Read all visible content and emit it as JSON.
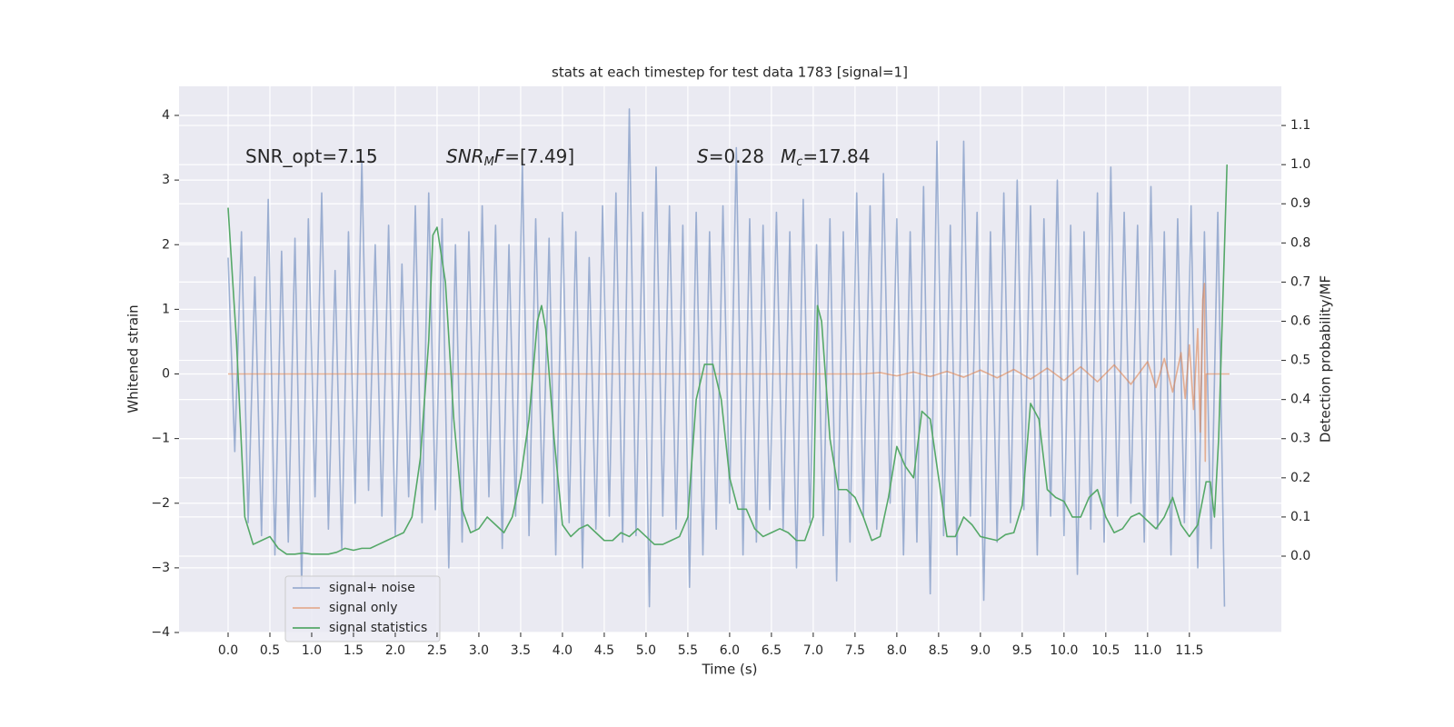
{
  "chart_data": {
    "type": "line",
    "title": "stats at each timestep for test data 1783 [signal=1]",
    "xlabel": "Time (s)",
    "ylabel": "Whitened strain",
    "y2label": "Detection probability/MF",
    "annotations": [
      [
        "SNR_opt=7.15"
      ],
      [
        "SNR",
        "M",
        "F",
        "=[7.49]"
      ],
      [
        "S",
        "=0.28",
        "M",
        "c",
        "=17.84"
      ]
    ],
    "xlim": [
      -0.587,
      12.6
    ],
    "ylim": [
      -4.0,
      4.45
    ],
    "y2lim": [
      -0.195,
      1.2
    ],
    "xticks": [
      {
        "value": 0,
        "label": "0.0"
      },
      0.5,
      {
        "value": 1,
        "label": "1.0"
      },
      1.5,
      {
        "value": 2,
        "label": "2.0"
      },
      2.5,
      {
        "value": 3,
        "label": "3.0"
      },
      3.5,
      {
        "value": 4,
        "label": "4.0"
      },
      4.5,
      {
        "value": 5,
        "label": "5.0"
      },
      5.5,
      {
        "value": 6,
        "label": "6.0"
      },
      6.5,
      {
        "value": 7,
        "label": "7.0"
      },
      7.5,
      {
        "value": 8,
        "label": "8.0"
      },
      8.5,
      {
        "value": 9,
        "label": "9.0"
      },
      9.5,
      {
        "value": 10,
        "label": "10.0"
      },
      10.5,
      {
        "value": 11,
        "label": "11.0"
      },
      11.5
    ],
    "yticks": [
      {
        "value": -4,
        "label": "−4"
      },
      {
        "value": -3,
        "label": "−3"
      },
      {
        "value": -2,
        "label": "−2"
      },
      {
        "value": -1,
        "label": "−1"
      },
      0,
      1,
      2,
      3,
      4
    ],
    "y2ticks": [
      {
        "value": 0,
        "label": "0.0"
      },
      0.1,
      0.2,
      0.3,
      0.4,
      0.5,
      0.6,
      0.7,
      0.8,
      0.9,
      {
        "value": 1,
        "label": "1.0"
      },
      1.1
    ],
    "grid": true,
    "legend": "lower left",
    "series": [
      {
        "name": "signal+ noise",
        "color": "#4c72b0",
        "opacity": 0.5,
        "x": [
          0,
          0.08,
          0.16,
          0.24,
          0.32,
          0.4,
          0.48,
          0.56,
          0.64,
          0.72,
          0.8,
          0.88,
          0.96,
          1.04,
          1.12,
          1.2,
          1.28,
          1.36,
          1.44,
          1.52,
          1.6,
          1.68,
          1.76,
          1.84,
          1.92,
          2,
          2.08,
          2.16,
          2.24,
          2.32,
          2.4,
          2.48,
          2.56,
          2.64,
          2.72,
          2.8,
          2.88,
          2.96,
          3.04,
          3.12,
          3.2,
          3.28,
          3.36,
          3.44,
          3.52,
          3.6,
          3.68,
          3.76,
          3.84,
          3.92,
          4,
          4.08,
          4.16,
          4.24,
          4.32,
          4.4,
          4.48,
          4.56,
          4.64,
          4.72,
          4.8,
          4.88,
          4.96,
          5.04,
          5.12,
          5.2,
          5.28,
          5.36,
          5.44,
          5.52,
          5.6,
          5.68,
          5.76,
          5.84,
          5.92,
          6,
          6.08,
          6.16,
          6.24,
          6.32,
          6.4,
          6.48,
          6.56,
          6.64,
          6.72,
          6.8,
          6.88,
          6.96,
          7.04,
          7.12,
          7.2,
          7.28,
          7.36,
          7.44,
          7.52,
          7.6,
          7.68,
          7.76,
          7.84,
          7.92,
          8,
          8.08,
          8.16,
          8.24,
          8.32,
          8.4,
          8.48,
          8.56,
          8.64,
          8.72,
          8.8,
          8.88,
          8.96,
          9.04,
          9.12,
          9.2,
          9.28,
          9.36,
          9.44,
          9.52,
          9.6,
          9.68,
          9.76,
          9.84,
          9.92,
          10,
          10.08,
          10.16,
          10.24,
          10.32,
          10.4,
          10.48,
          10.56,
          10.64,
          10.72,
          10.8,
          10.88,
          10.96,
          11.04,
          11.12,
          11.2,
          11.28,
          11.36,
          11.44,
          11.52,
          11.6,
          11.68,
          11.76,
          11.84,
          11.92
        ],
        "values": [
          1.8,
          -1.2,
          2.2,
          -2.3,
          1.5,
          -2.5,
          2.7,
          -2.8,
          1.9,
          -2.6,
          2.1,
          -3.3,
          2.4,
          -1.9,
          2.8,
          -2.4,
          1.6,
          -2.7,
          2.2,
          -2.0,
          3.3,
          -1.8,
          2.0,
          -2.2,
          2.3,
          -2.5,
          1.7,
          -1.9,
          2.6,
          -2.3,
          2.8,
          -2.1,
          2.4,
          -3.0,
          2.0,
          -2.6,
          2.2,
          -2.4,
          2.6,
          -1.9,
          2.3,
          -2.7,
          2.0,
          -2.2,
          3.3,
          -2.5,
          2.4,
          -2.0,
          2.1,
          -2.8,
          2.5,
          -2.3,
          2.2,
          -3.0,
          1.8,
          -2.4,
          2.6,
          -2.2,
          2.8,
          -2.6,
          4.1,
          -2.5,
          2.5,
          -3.6,
          3.2,
          -2.2,
          2.6,
          -2.4,
          2.3,
          -3.3,
          2.5,
          -2.8,
          2.2,
          -2.4,
          2.6,
          -2.0,
          3.5,
          -2.8,
          2.4,
          -2.6,
          2.3,
          -2.1,
          2.5,
          -2.4,
          2.2,
          -3.0,
          2.7,
          -2.3,
          2.0,
          -2.5,
          2.4,
          -3.2,
          2.2,
          -2.6,
          2.8,
          -2.2,
          2.6,
          -2.4,
          3.1,
          -2.0,
          2.4,
          -2.8,
          2.2,
          -2.6,
          2.9,
          -3.4,
          3.6,
          -2.5,
          2.3,
          -2.8,
          3.6,
          -2.2,
          2.5,
          -3.5,
          2.2,
          -2.6,
          2.8,
          -2.3,
          3.0,
          -2.1,
          2.6,
          -2.8,
          2.4,
          -2.2,
          3.0,
          -2.5,
          2.3,
          -3.1,
          2.2,
          -2.4,
          2.8,
          -2.6,
          3.2,
          -2.2,
          2.5,
          -2.0,
          2.3,
          -2.6,
          2.9,
          -2.4,
          2.2,
          -2.8,
          2.4,
          -2.3,
          2.6,
          -3.0,
          2.2,
          -2.7,
          2.5,
          -3.6
        ]
      },
      {
        "name": "signal only",
        "color": "#dd8452",
        "opacity": 0.6,
        "x": [
          0,
          7.6,
          7.8,
          8.0,
          8.2,
          8.4,
          8.6,
          8.8,
          9.0,
          9.2,
          9.4,
          9.6,
          9.8,
          10.0,
          10.2,
          10.4,
          10.6,
          10.8,
          11.0,
          11.1,
          11.2,
          11.3,
          11.4,
          11.45,
          11.5,
          11.55,
          11.6,
          11.63,
          11.66,
          11.68,
          11.69,
          11.7,
          11.98
        ],
        "values": [
          0,
          0,
          0.02,
          -0.03,
          0.03,
          -0.04,
          0.04,
          -0.05,
          0.06,
          -0.06,
          0.07,
          -0.08,
          0.09,
          -0.1,
          0.11,
          -0.12,
          0.14,
          -0.16,
          0.19,
          -0.21,
          0.24,
          -0.28,
          0.33,
          -0.38,
          0.45,
          -0.55,
          0.7,
          -0.9,
          1.15,
          1.4,
          -1.35,
          0,
          0
        ]
      },
      {
        "name": "signal statistics",
        "color": "#55a868",
        "opacity": 1,
        "axis": "y2",
        "x": [
          0,
          0.1,
          0.2,
          0.3,
          0.4,
          0.5,
          0.6,
          0.7,
          0.8,
          0.9,
          1.0,
          1.1,
          1.2,
          1.3,
          1.4,
          1.5,
          1.6,
          1.7,
          1.8,
          1.9,
          2.0,
          2.1,
          2.2,
          2.3,
          2.4,
          2.45,
          2.5,
          2.6,
          2.7,
          2.8,
          2.9,
          3.0,
          3.1,
          3.2,
          3.3,
          3.4,
          3.5,
          3.6,
          3.7,
          3.75,
          3.8,
          3.9,
          4.0,
          4.1,
          4.2,
          4.3,
          4.4,
          4.5,
          4.6,
          4.7,
          4.8,
          4.9,
          5.0,
          5.1,
          5.2,
          5.3,
          5.4,
          5.5,
          5.6,
          5.7,
          5.8,
          5.9,
          6.0,
          6.1,
          6.2,
          6.3,
          6.4,
          6.5,
          6.6,
          6.7,
          6.8,
          6.9,
          7.0,
          7.05,
          7.1,
          7.2,
          7.3,
          7.4,
          7.5,
          7.6,
          7.7,
          7.8,
          7.9,
          8.0,
          8.1,
          8.2,
          8.3,
          8.4,
          8.5,
          8.6,
          8.7,
          8.8,
          8.9,
          9.0,
          9.1,
          9.2,
          9.3,
          9.4,
          9.5,
          9.6,
          9.7,
          9.8,
          9.9,
          10.0,
          10.1,
          10.2,
          10.3,
          10.4,
          10.5,
          10.6,
          10.7,
          10.8,
          10.9,
          11.0,
          11.1,
          11.2,
          11.3,
          11.4,
          11.5,
          11.6,
          11.7,
          11.75,
          11.8,
          11.85,
          11.95
        ],
        "values": [
          0.89,
          0.55,
          0.1,
          0.03,
          0.04,
          0.05,
          0.02,
          0.005,
          0.005,
          0.008,
          0.005,
          0.005,
          0.005,
          0.01,
          0.02,
          0.015,
          0.02,
          0.02,
          0.03,
          0.04,
          0.05,
          0.06,
          0.1,
          0.25,
          0.55,
          0.82,
          0.84,
          0.7,
          0.35,
          0.12,
          0.06,
          0.07,
          0.1,
          0.08,
          0.06,
          0.1,
          0.2,
          0.35,
          0.6,
          0.64,
          0.58,
          0.3,
          0.08,
          0.05,
          0.07,
          0.08,
          0.06,
          0.04,
          0.04,
          0.06,
          0.05,
          0.07,
          0.05,
          0.03,
          0.03,
          0.04,
          0.05,
          0.1,
          0.4,
          0.49,
          0.49,
          0.4,
          0.2,
          0.12,
          0.12,
          0.07,
          0.05,
          0.06,
          0.07,
          0.06,
          0.04,
          0.04,
          0.1,
          0.64,
          0.6,
          0.3,
          0.17,
          0.17,
          0.15,
          0.1,
          0.04,
          0.05,
          0.15,
          0.28,
          0.23,
          0.2,
          0.37,
          0.35,
          0.2,
          0.05,
          0.05,
          0.1,
          0.08,
          0.05,
          0.045,
          0.04,
          0.055,
          0.06,
          0.13,
          0.39,
          0.35,
          0.17,
          0.15,
          0.14,
          0.1,
          0.1,
          0.15,
          0.17,
          0.1,
          0.06,
          0.07,
          0.1,
          0.11,
          0.09,
          0.07,
          0.1,
          0.15,
          0.08,
          0.05,
          0.08,
          0.19,
          0.19,
          0.1,
          0.3,
          1.0
        ]
      }
    ]
  }
}
